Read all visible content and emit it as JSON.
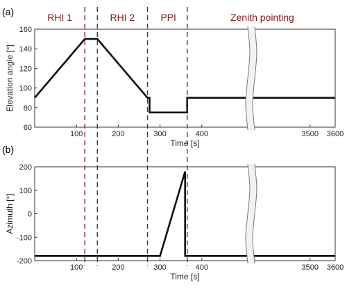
{
  "phases": [
    {
      "label": "RHI 1",
      "x": 60
    },
    {
      "label": "RHI 2",
      "x": 210
    },
    {
      "label": "PPI",
      "x": 320
    },
    {
      "label": "Zenith pointing",
      "x": 3310
    }
  ],
  "phase_boundaries": [
    120,
    150,
    270,
    365
  ],
  "colors": {
    "phase": "#8b1a1a",
    "line": "#111111",
    "axis": "#333333"
  },
  "chart_data": [
    {
      "type": "line",
      "panel_label": "(a)",
      "xlabel": "Time [s]",
      "ylabel": "Elevation angle [°]",
      "ylim": [
        60,
        160
      ],
      "yticks": [
        60,
        80,
        100,
        120,
        140,
        160
      ],
      "xticks": [
        100,
        200,
        300,
        400,
        3500,
        3600
      ],
      "x_break": {
        "from": 510,
        "to": 3280
      },
      "series": [
        {
          "x": [
            0,
            120,
            150,
            270,
            275,
            275,
            365,
            365,
            510,
            3280,
            3600
          ],
          "values": [
            90,
            150,
            150,
            90,
            90,
            75,
            75,
            90,
            90,
            90,
            90
          ]
        }
      ]
    },
    {
      "type": "line",
      "panel_label": "(b)",
      "xlabel": "Time [s]",
      "ylabel": "Azimuth [°]",
      "ylim": [
        -200,
        200
      ],
      "yticks": [
        -200,
        -100,
        0,
        100,
        200
      ],
      "xticks": [
        100,
        200,
        300,
        400,
        3500,
        3600
      ],
      "x_break": {
        "from": 510,
        "to": 3280
      },
      "series": [
        {
          "x": [
            0,
            300,
            360,
            360,
            510,
            3280,
            3600
          ],
          "values": [
            -180,
            -180,
            180,
            -180,
            -180,
            -180,
            -180
          ]
        }
      ]
    }
  ]
}
